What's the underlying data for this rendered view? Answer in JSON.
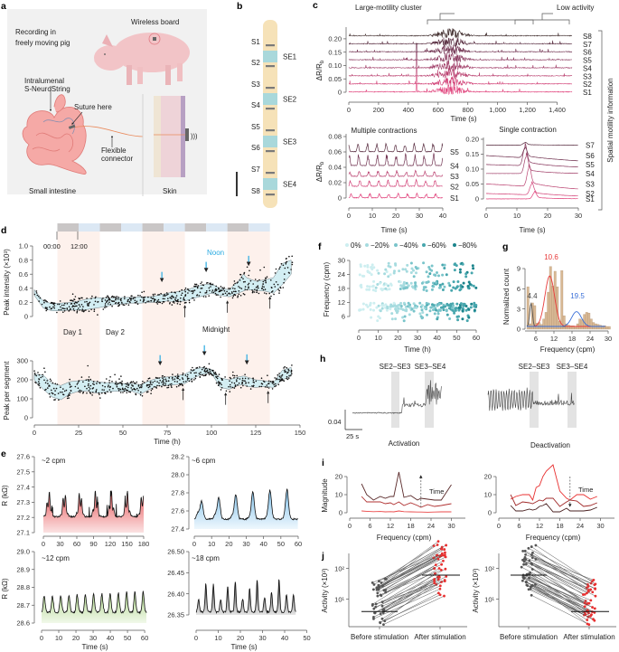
{
  "panel_labels": {
    "a": "a",
    "b": "b",
    "c": "c",
    "d": "d",
    "e": "e",
    "f": "f",
    "g": "g",
    "h": "h",
    "i": "i",
    "j": "j"
  },
  "a": {
    "title_line1": "Recording in",
    "title_line2": "freely moving pig",
    "wireless_board": "Wireless board",
    "sensor_line1": "Intralumenal",
    "sensor_line2": "S-NeuroString",
    "suture": "Suture here",
    "connector_line1": "Flexible",
    "connector_line2": "connector",
    "intestine": "Small intestine",
    "skin": "Skin"
  },
  "b": {
    "sensors": [
      "S1",
      "S2",
      "S3",
      "S4",
      "S5",
      "S6",
      "S7",
      "S8"
    ],
    "electrodes": [
      "SE1",
      "SE2",
      "SE3",
      "SE4"
    ],
    "colors": {
      "tube": "#f6e2b8",
      "sensor": "#7a7a7a",
      "electrode": "#a9d8db"
    }
  },
  "chart_data": [
    {
      "id": "c-overview",
      "type": "line",
      "annotations": [
        "Large-motility cluster",
        "Low activity"
      ],
      "xlabel": "Time (s)",
      "ylabel": "ΔR/R",
      "ylabel_sub": "b",
      "xlim": [
        0,
        1500
      ],
      "ylim": [
        0,
        0.22
      ],
      "xticks": [
        0,
        200,
        400,
        600,
        800,
        1000,
        1200,
        1400
      ],
      "xtick_labels": [
        "0",
        "200",
        "400",
        "600",
        "800",
        "1,000",
        "1,200",
        "1,400"
      ],
      "yticks": [
        0,
        0.05,
        0.1,
        0.15,
        0.2
      ],
      "ytick_labels": [
        "0",
        "0.05",
        "0.10",
        "0.15",
        "0.20"
      ],
      "series": [
        "S1",
        "S2",
        "S3",
        "S4",
        "S5",
        "S6",
        "S7",
        "S8"
      ],
      "offsets": [
        0,
        0.03,
        0.06,
        0.09,
        0.12,
        0.15,
        0.18,
        0.21
      ],
      "burst_window_s": [
        500,
        870
      ],
      "low_activity_window_s": [
        1090,
        1450
      ],
      "side_label": "Spatial motility information"
    },
    {
      "id": "c-multiple",
      "type": "line",
      "title": "Multiple contractions",
      "xlabel": "Time (s)",
      "ylabel": "ΔR/R",
      "ylabel_sub": "b",
      "xlim": [
        0,
        40
      ],
      "ylim": [
        0,
        0.08
      ],
      "xticks": [
        0,
        10,
        20,
        30,
        40
      ],
      "yticks": [
        0,
        0.02,
        0.04,
        0.06,
        0.08
      ],
      "ytick_labels": [
        "0",
        "0.02",
        "0.04",
        "0.06",
        "0.08"
      ],
      "series": [
        "S1",
        "S2",
        "S3",
        "S4",
        "S5"
      ],
      "offsets": [
        0,
        0.015,
        0.028,
        0.042,
        0.06
      ],
      "period_s": 4
    },
    {
      "id": "c-single",
      "type": "line",
      "title": "Single contraction",
      "xlabel": "Time (s)",
      "xlim": [
        0,
        30
      ],
      "ylim": [
        0,
        0.2
      ],
      "xticks": [
        0,
        10,
        20,
        30
      ],
      "yticks": [
        0,
        0.05,
        0.1,
        0.15,
        0.2
      ],
      "ytick_labels": [
        "0",
        "0.05",
        "0.10",
        "0.15",
        "0.20"
      ],
      "series": [
        "S1",
        "S2",
        "S3",
        "S4",
        "S5",
        "S6",
        "S7"
      ],
      "offsets": [
        0,
        0.018,
        0.05,
        0.085,
        0.115,
        0.145,
        0.18
      ],
      "peak_time_s": 13,
      "peak_amplitudes": [
        0.02,
        0.035,
        0.06,
        0.055,
        0.06,
        0.03,
        0.008
      ]
    },
    {
      "id": "d-intensity",
      "type": "scatter",
      "ylabel": "Peak intensity (×10³)",
      "xlim": [
        0,
        150
      ],
      "ylim": [
        0,
        1.0
      ],
      "yticks": [
        0,
        0.2,
        0.4,
        0.6,
        0.8,
        1.0
      ],
      "ytick_labels": [
        "0",
        "0.2",
        "0.4",
        "0.6",
        "0.8",
        "1.0"
      ],
      "time_h": [
        0,
        5,
        10,
        15,
        20,
        25,
        30,
        35,
        40,
        45,
        50,
        55,
        60,
        65,
        70,
        75,
        80,
        85,
        90,
        95,
        100,
        105,
        110,
        115,
        118,
        120,
        125,
        130,
        135,
        140,
        145
      ],
      "band_lower": [
        0.3,
        0.12,
        0.08,
        0.08,
        0.09,
        0.09,
        0.1,
        0.12,
        0.14,
        0.17,
        0.18,
        0.19,
        0.19,
        0.2,
        0.2,
        0.22,
        0.21,
        0.22,
        0.26,
        0.29,
        0.33,
        0.3,
        0.28,
        0.33,
        0.36,
        0.38,
        0.37,
        0.36,
        0.33,
        0.45,
        0.6
      ],
      "band_upper": [
        0.38,
        0.22,
        0.18,
        0.19,
        0.2,
        0.22,
        0.25,
        0.27,
        0.26,
        0.26,
        0.27,
        0.27,
        0.28,
        0.28,
        0.3,
        0.33,
        0.35,
        0.37,
        0.41,
        0.45,
        0.46,
        0.4,
        0.38,
        0.5,
        0.6,
        0.55,
        0.5,
        0.52,
        0.55,
        0.75,
        0.8
      ],
      "noon_arrows_h": [
        72,
        97,
        121
      ],
      "midnight_arrows_h": [
        85,
        109,
        133
      ],
      "annotations": {
        "noon": "Noon",
        "midnight": "Midnight",
        "day1": "Day 1",
        "day2": "Day 2",
        "t0": "00:00",
        "t12": "12:00"
      },
      "night_bands_h": [
        [
          13,
          37
        ],
        [
          61,
          85
        ],
        [
          109,
          133
        ]
      ],
      "daybar_start_h": 13,
      "daybar_segment_h": 12,
      "daybar_segments": 10,
      "colors": {
        "band": "#d3eef3",
        "noon": "#29aae1",
        "night": "#fdf1ec",
        "bar_dark": "#c9c6c6",
        "bar_light": "#dce8f4"
      }
    },
    {
      "id": "d-segment",
      "type": "scatter",
      "ylabel": "Peak per segment",
      "xlabel": "Time (h)",
      "xlim": [
        0,
        150
      ],
      "ylim": [
        0,
        350
      ],
      "xticks": [
        0,
        25,
        50,
        75,
        100,
        125,
        150
      ],
      "yticks": [
        0,
        100,
        200,
        300
      ],
      "time_h": [
        0,
        5,
        10,
        15,
        20,
        25,
        30,
        35,
        40,
        45,
        50,
        55,
        60,
        65,
        70,
        75,
        80,
        85,
        90,
        95,
        100,
        105,
        110,
        115,
        118,
        120,
        125,
        130,
        135,
        140,
        145
      ],
      "band_lower": [
        200,
        150,
        110,
        95,
        125,
        140,
        140,
        130,
        135,
        140,
        140,
        140,
        125,
        150,
        170,
        170,
        175,
        180,
        210,
        230,
        235,
        160,
        150,
        170,
        175,
        165,
        160,
        165,
        160,
        200,
        220
      ],
      "band_upper": [
        230,
        225,
        180,
        170,
        190,
        195,
        200,
        190,
        185,
        185,
        180,
        180,
        175,
        195,
        210,
        215,
        220,
        230,
        255,
        265,
        255,
        210,
        200,
        215,
        220,
        215,
        200,
        195,
        185,
        250,
        265
      ],
      "noon_arrows_h": [
        71,
        96,
        120
      ],
      "midnight_arrows_h": [
        84,
        108,
        132
      ]
    },
    {
      "id": "e-2cpm",
      "type": "area",
      "label": "~2 cpm",
      "ylabel": "R (kΩ)",
      "xlim": [
        0,
        180
      ],
      "ylim": [
        27.1,
        27.6
      ],
      "xticks": [
        0,
        30,
        60,
        90,
        120,
        150,
        180
      ],
      "yticks": [
        27.1,
        27.2,
        27.3,
        27.4,
        27.5,
        27.6
      ],
      "ytick_labels": [
        "27.1",
        "27.2",
        "27.3",
        "27.4",
        "27.5",
        "27.6"
      ],
      "period_s": 28,
      "baseline": 27.2,
      "amplitude": 0.16,
      "color": "#e8575a"
    },
    {
      "id": "e-6cpm",
      "type": "area",
      "label": "~6 cpm",
      "xlim": [
        0,
        60
      ],
      "ylim": [
        27.4,
        28.2
      ],
      "xticks": [
        0,
        10,
        20,
        30,
        40,
        50,
        60
      ],
      "yticks": [
        27.4,
        27.6,
        27.8,
        28.0,
        28.2
      ],
      "ytick_labels": [
        "27.4",
        "27.6",
        "27.8",
        "28.0",
        "28.2"
      ],
      "period_s": 10,
      "baseline": 27.5,
      "amplitude": 0.3,
      "color": "#7fc0ea"
    },
    {
      "id": "e-12cpm",
      "type": "area",
      "label": "~12 cpm",
      "ylabel": "R (kΩ)",
      "xlabel": "Time (s)",
      "xlim": [
        0,
        61
      ],
      "ylim": [
        28.6,
        29.0
      ],
      "xticks": [
        0,
        10,
        20,
        30,
        40,
        50,
        60
      ],
      "yticks": [
        28.6,
        28.7,
        28.8,
        28.9,
        29.0
      ],
      "ytick_labels": [
        "28.6",
        "28.7",
        "28.8",
        "28.9",
        "29.0"
      ],
      "period_s": 4.8,
      "baseline": 28.655,
      "amplitude": 0.19,
      "color": "#aed68a"
    },
    {
      "id": "e-18cpm",
      "type": "area",
      "label": "~18 cpm",
      "xlabel": "Time (s)",
      "xlim": [
        0,
        45
      ],
      "ylim": [
        26.35,
        26.5
      ],
      "xticks": [
        0,
        10,
        20,
        30,
        40,
        50
      ],
      "yticks": [
        26.35,
        26.4,
        26.45,
        26.5
      ],
      "ytick_labels": [
        "26.35",
        "26.40",
        "26.45",
        "26.50"
      ],
      "period_s": 3.3,
      "baseline": 26.355,
      "amplitude": 0.07,
      "color": "#555555"
    },
    {
      "id": "f",
      "type": "scatter",
      "xlabel": "Time (h)",
      "ylabel": "Frequency (cpm)",
      "xlim": [
        0,
        60
      ],
      "ylim": [
        3,
        32
      ],
      "xticks": [
        0,
        10,
        20,
        30,
        40,
        50,
        60
      ],
      "yticks": [
        6,
        12,
        18,
        24,
        30
      ],
      "legend": [
        "0%",
        "−20%",
        "−40%",
        "−60%",
        "−80%"
      ],
      "legend_colors": [
        "#cdeef0",
        "#a6dbdf",
        "#79c4ca",
        "#47a6ad",
        "#1c848c"
      ],
      "clusters_cpm": [
        10,
        19,
        26
      ]
    },
    {
      "id": "g",
      "type": "bar",
      "xlabel": "Frequency (cpm)",
      "ylabel": "Normalized count",
      "xlim": [
        0,
        30
      ],
      "ylim": [
        0,
        10
      ],
      "xticks": [
        6,
        12,
        18,
        24,
        30
      ],
      "yticks": [
        0,
        3,
        6,
        9
      ],
      "bin_start": 3,
      "bin_width": 0.75,
      "values": [
        6.3,
        0.8,
        3.9,
        3.5,
        0.9,
        1.0,
        0.7,
        1.5,
        2.5,
        5.5,
        9.3,
        6.4,
        8.6,
        6.3,
        1.2,
        8.7,
        2.0,
        0.8,
        0.6,
        0.5,
        0.5,
        0.4,
        0.8,
        1.5,
        1.4,
        2.2,
        2.5,
        2.4,
        1.5,
        1.0,
        0.8,
        0.7,
        0.6,
        0.5,
        0.5,
        0.4,
        0.4
      ],
      "fits": [
        {
          "center": 4.4,
          "sigma": 0.45,
          "amp": 3.4,
          "color": "#555555",
          "label": "4.4"
        },
        {
          "center": 10.6,
          "sigma": 1.6,
          "amp": 7.5,
          "color": "#e83a3a",
          "label": "10.6"
        },
        {
          "center": 19.5,
          "sigma": 1.6,
          "amp": 2.2,
          "color": "#3a6fd8",
          "label": "19.5"
        }
      ],
      "fit_baseline": 0.4,
      "bar_color": "#d9b995"
    },
    {
      "id": "h",
      "type": "line",
      "labels": [
        "SE2–SE3",
        "SE3–SE4",
        "SE2–SE3",
        "SE3–SE4"
      ],
      "scale_y": "0.04",
      "scale_x": "25 s",
      "conditions": [
        "Activation",
        "Deactivation"
      ]
    },
    {
      "id": "i-activation",
      "type": "line",
      "xlabel": "Frequency (cpm)",
      "ylabel": "Magnitude",
      "xlim": [
        0,
        32
      ],
      "ylim": [
        0,
        25
      ],
      "xticks": [
        0,
        6,
        12,
        18,
        24,
        30
      ],
      "yticks": [
        0,
        10,
        20
      ],
      "x": [
        3.5,
        5,
        7,
        9,
        10.5,
        12,
        13,
        14.5,
        16,
        18,
        20,
        21,
        23,
        25,
        27,
        30
      ],
      "series": [
        {
          "values": [
            16,
            10,
            7,
            9,
            8,
            9,
            9,
            22.5,
            8.5,
            9.5,
            7,
            8,
            7.5,
            7,
            7,
            15.5
          ],
          "color": "#5a2a2a"
        },
        {
          "values": [
            9,
            6,
            6,
            6,
            5,
            5.5,
            4.5,
            6,
            4,
            5.5,
            4,
            3,
            4.5,
            3.5,
            4,
            5
          ],
          "color": "#b03030"
        },
        {
          "values": [
            1,
            0.8,
            0.6,
            0.7,
            0.5,
            0.6,
            0.5,
            1,
            0.6,
            0.5,
            0.4,
            0.4,
            0.3,
            0.4,
            0.5,
            0.5
          ],
          "color": "#ea4848"
        }
      ],
      "arrow_label": "Time",
      "arrow_direction": "up"
    },
    {
      "id": "i-deactivation",
      "type": "line",
      "xlabel": "Frequency (cpm)",
      "xlim": [
        0,
        32
      ],
      "ylim": [
        0,
        25
      ],
      "xticks": [
        0,
        6,
        12,
        18,
        24,
        30
      ],
      "yticks": [
        0,
        10,
        20
      ],
      "x": [
        3.5,
        5,
        7,
        9,
        10,
        11,
        12,
        13,
        14,
        16,
        18,
        20,
        21,
        23,
        25,
        27,
        29
      ],
      "series": [
        {
          "values": [
            7.5,
            9,
            10,
            10,
            7,
            14,
            15,
            20,
            23,
            26.5,
            12,
            8,
            7,
            10,
            10,
            7.5,
            9
          ],
          "color": "#e83030"
        },
        {
          "values": [
            10,
            4,
            6,
            5.5,
            5,
            6,
            7,
            6.5,
            8,
            8,
            3.5,
            6,
            7,
            6.5,
            3.5,
            4,
            5.5
          ],
          "color": "#a02828"
        },
        {
          "values": [
            4,
            1,
            1,
            2,
            1.5,
            2,
            3.5,
            4,
            5,
            0.5,
            0.5,
            2.5,
            1,
            1,
            1,
            1.5,
            3
          ],
          "color": "#4a2020"
        }
      ],
      "arrow_label": "Time",
      "arrow_direction": "down"
    },
    {
      "id": "j-activation",
      "type": "scatter",
      "ylabel": "Activity (×10³)",
      "categories": [
        "Before stimulation",
        "After stimulation"
      ],
      "yscale": "log",
      "ylim": [
        1.3,
        300
      ],
      "ytick_labels": [
        "10¹",
        "10²"
      ],
      "yticks": [
        10,
        100
      ],
      "medians": [
        4,
        60
      ],
      "n_pairs": 45
    },
    {
      "id": "j-deactivation",
      "type": "scatter",
      "ylabel": "Activity (×10³)",
      "categories": [
        "Before stimulation",
        "After stimulation"
      ],
      "yscale": "log",
      "ylim": [
        1.3,
        300
      ],
      "ytick_labels": [
        "10¹",
        "10²"
      ],
      "yticks": [
        10,
        100
      ],
      "medians": [
        60,
        4
      ],
      "n_pairs": 45
    }
  ]
}
